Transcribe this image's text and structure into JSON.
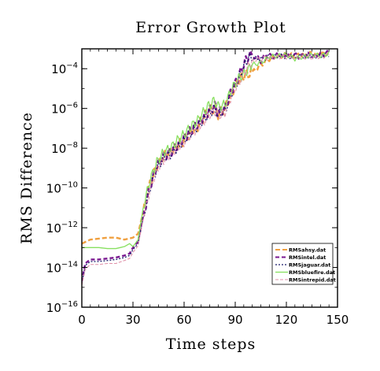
{
  "chart_data": {
    "type": "line",
    "title": "Error Growth Plot",
    "xlabel": "Time steps",
    "ylabel": "RMS Difference",
    "xlim": [
      0,
      150
    ],
    "ylim": [
      1e-16,
      0.001
    ],
    "yscale": "log",
    "xticks": [
      0,
      30,
      60,
      90,
      120,
      150
    ],
    "yticks": [
      {
        "exp": -16,
        "base": "10",
        "sup": "−16"
      },
      {
        "exp": -14,
        "base": "10",
        "sup": "−14"
      },
      {
        "exp": -12,
        "base": "10",
        "sup": "−12"
      },
      {
        "exp": -10,
        "base": "10",
        "sup": "−10"
      },
      {
        "exp": -8,
        "base": "10",
        "sup": "−8"
      },
      {
        "exp": -6,
        "base": "10",
        "sup": "−6"
      },
      {
        "exp": -4,
        "base": "10",
        "sup": "−4"
      }
    ],
    "grid": false,
    "legend_position": "bottom-right",
    "series": [
      {
        "name": "RMSahsy.dat",
        "color": "#f0a040",
        "dash": "6,3",
        "width": 2.4,
        "log10_points": [
          [
            0,
            -12.8
          ],
          [
            5,
            -12.6
          ],
          [
            10,
            -12.55
          ],
          [
            15,
            -12.5
          ],
          [
            20,
            -12.5
          ],
          [
            25,
            -12.6
          ],
          [
            30,
            -12.5
          ],
          [
            33,
            -12.3
          ],
          [
            36,
            -11.2
          ],
          [
            40,
            -9.8
          ],
          [
            44,
            -8.9
          ],
          [
            48,
            -8.4
          ],
          [
            52,
            -8.2
          ],
          [
            56,
            -7.9
          ],
          [
            60,
            -7.6
          ],
          [
            64,
            -7.2
          ],
          [
            68,
            -6.9
          ],
          [
            72,
            -6.4
          ],
          [
            75,
            -6.1
          ],
          [
            78,
            -6.0
          ],
          [
            80,
            -6.3
          ],
          [
            84,
            -6.0
          ],
          [
            88,
            -5.2
          ],
          [
            92,
            -4.6
          ],
          [
            96,
            -4.3
          ],
          [
            100,
            -4.2
          ],
          [
            105,
            -3.8
          ],
          [
            110,
            -3.5
          ],
          [
            115,
            -3.4
          ],
          [
            120,
            -3.3
          ],
          [
            125,
            -3.35
          ],
          [
            130,
            -3.3
          ],
          [
            135,
            -3.25
          ],
          [
            140,
            -3.3
          ],
          [
            145,
            -3.2
          ]
        ]
      },
      {
        "name": "RMSintel.dat",
        "color": "#7a1890",
        "dash": "5,3",
        "width": 2.4,
        "log10_points": [
          [
            0,
            -14.7
          ],
          [
            2,
            -13.8
          ],
          [
            5,
            -13.6
          ],
          [
            10,
            -13.6
          ],
          [
            15,
            -13.55
          ],
          [
            20,
            -13.5
          ],
          [
            25,
            -13.4
          ],
          [
            28,
            -13.3
          ],
          [
            30,
            -13.0
          ],
          [
            33,
            -12.7
          ],
          [
            36,
            -11.4
          ],
          [
            40,
            -9.9
          ],
          [
            44,
            -8.9
          ],
          [
            48,
            -8.4
          ],
          [
            52,
            -8.2
          ],
          [
            56,
            -7.9
          ],
          [
            60,
            -7.5
          ],
          [
            64,
            -7.1
          ],
          [
            68,
            -6.8
          ],
          [
            72,
            -6.4
          ],
          [
            75,
            -6.1
          ],
          [
            78,
            -5.9
          ],
          [
            80,
            -6.2
          ],
          [
            84,
            -6.0
          ],
          [
            88,
            -5.1
          ],
          [
            92,
            -4.4
          ],
          [
            95,
            -3.8
          ],
          [
            98,
            -3.3
          ],
          [
            102,
            -3.4
          ],
          [
            105,
            -3.6
          ],
          [
            108,
            -3.3
          ],
          [
            112,
            -3.4
          ],
          [
            116,
            -3.3
          ],
          [
            120,
            -3.35
          ],
          [
            124,
            -3.3
          ],
          [
            128,
            -3.4
          ],
          [
            132,
            -3.3
          ],
          [
            136,
            -3.35
          ],
          [
            140,
            -3.3
          ],
          [
            145,
            -3.2
          ]
        ]
      },
      {
        "name": "RMSjaguar.dat",
        "color": "#1a1a6a",
        "dash": "2,2",
        "width": 1.3,
        "log10_points": [
          [
            0,
            -14.8
          ],
          [
            2,
            -13.9
          ],
          [
            5,
            -13.7
          ],
          [
            10,
            -13.7
          ],
          [
            15,
            -13.65
          ],
          [
            20,
            -13.6
          ],
          [
            25,
            -13.5
          ],
          [
            28,
            -13.4
          ],
          [
            30,
            -13.1
          ],
          [
            33,
            -12.8
          ],
          [
            36,
            -11.5
          ],
          [
            40,
            -10.0
          ],
          [
            44,
            -9.0
          ],
          [
            48,
            -8.5
          ],
          [
            52,
            -8.3
          ],
          [
            56,
            -8.0
          ],
          [
            60,
            -7.6
          ],
          [
            64,
            -7.2
          ],
          [
            68,
            -6.9
          ],
          [
            72,
            -6.5
          ],
          [
            75,
            -6.2
          ],
          [
            78,
            -6.0
          ],
          [
            80,
            -6.3
          ],
          [
            84,
            -6.1
          ],
          [
            88,
            -5.2
          ],
          [
            92,
            -4.5
          ],
          [
            95,
            -3.9
          ],
          [
            98,
            -3.4
          ],
          [
            102,
            -3.5
          ],
          [
            106,
            -3.5
          ],
          [
            110,
            -3.4
          ],
          [
            115,
            -3.35
          ],
          [
            120,
            -3.4
          ],
          [
            125,
            -3.4
          ],
          [
            130,
            -3.35
          ],
          [
            135,
            -3.4
          ],
          [
            140,
            -3.35
          ],
          [
            145,
            -3.3
          ]
        ]
      },
      {
        "name": "RMSbluefire.dat",
        "color": "#88e060",
        "dash": "",
        "width": 1.3,
        "log10_points": [
          [
            0,
            -13.0
          ],
          [
            5,
            -13.0
          ],
          [
            10,
            -13.0
          ],
          [
            15,
            -13.05
          ],
          [
            20,
            -13.05
          ],
          [
            25,
            -12.95
          ],
          [
            28,
            -12.8
          ],
          [
            30,
            -12.95
          ],
          [
            33,
            -12.6
          ],
          [
            36,
            -11.0
          ],
          [
            40,
            -9.6
          ],
          [
            44,
            -8.7
          ],
          [
            48,
            -8.2
          ],
          [
            52,
            -8.0
          ],
          [
            56,
            -7.6
          ],
          [
            60,
            -7.3
          ],
          [
            64,
            -6.9
          ],
          [
            68,
            -6.6
          ],
          [
            72,
            -6.1
          ],
          [
            75,
            -5.8
          ],
          [
            78,
            -5.6
          ],
          [
            80,
            -5.9
          ],
          [
            84,
            -5.8
          ],
          [
            88,
            -5.0
          ],
          [
            92,
            -4.5
          ],
          [
            96,
            -4.2
          ],
          [
            100,
            -3.8
          ],
          [
            105,
            -3.7
          ],
          [
            110,
            -3.4
          ],
          [
            115,
            -3.35
          ],
          [
            120,
            -3.3
          ],
          [
            125,
            -3.5
          ],
          [
            130,
            -3.4
          ],
          [
            135,
            -3.3
          ],
          [
            140,
            -3.35
          ],
          [
            145,
            -3.25
          ]
        ]
      },
      {
        "name": "RMSintrepid.dat",
        "color": "#e090a8",
        "dash": "4,2",
        "width": 1.1,
        "log10_points": [
          [
            0,
            -14.9
          ],
          [
            2,
            -14.1
          ],
          [
            5,
            -13.85
          ],
          [
            10,
            -13.85
          ],
          [
            15,
            -13.8
          ],
          [
            20,
            -13.8
          ],
          [
            25,
            -13.65
          ],
          [
            28,
            -13.55
          ],
          [
            30,
            -13.25
          ],
          [
            33,
            -12.9
          ],
          [
            36,
            -11.6
          ],
          [
            40,
            -10.1
          ],
          [
            44,
            -9.1
          ],
          [
            48,
            -8.6
          ],
          [
            52,
            -8.3
          ],
          [
            56,
            -8.0
          ],
          [
            60,
            -7.7
          ],
          [
            64,
            -7.3
          ],
          [
            68,
            -7.0
          ],
          [
            72,
            -6.6
          ],
          [
            75,
            -6.3
          ],
          [
            78,
            -6.1
          ],
          [
            80,
            -6.4
          ],
          [
            84,
            -6.2
          ],
          [
            88,
            -5.3
          ],
          [
            92,
            -4.7
          ],
          [
            96,
            -4.1
          ],
          [
            100,
            -3.6
          ],
          [
            105,
            -3.5
          ],
          [
            110,
            -3.45
          ],
          [
            115,
            -3.4
          ],
          [
            120,
            -3.4
          ],
          [
            125,
            -3.45
          ],
          [
            130,
            -3.4
          ],
          [
            135,
            -3.45
          ],
          [
            140,
            -3.4
          ],
          [
            145,
            -3.3
          ]
        ]
      }
    ]
  }
}
